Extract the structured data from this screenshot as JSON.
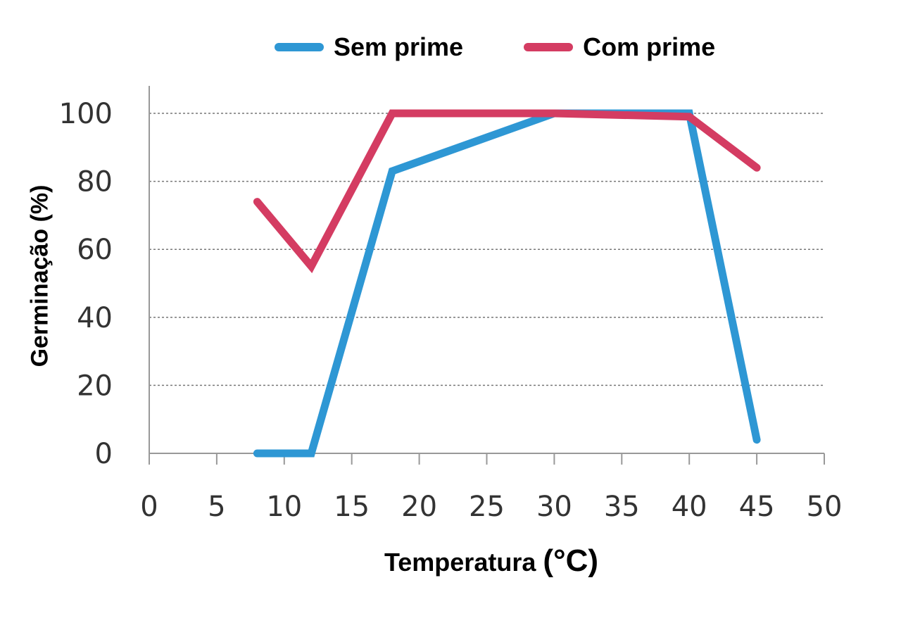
{
  "chart_data": {
    "type": "line",
    "xlabel": "Temperatura",
    "xlabel_unit": "(°C)",
    "ylabel": "Germinação (%)",
    "xlim": [
      0,
      50
    ],
    "ylim": [
      0,
      100
    ],
    "xticks": [
      0,
      5,
      10,
      15,
      20,
      25,
      30,
      35,
      40,
      45,
      50
    ],
    "yticks": [
      0,
      20,
      40,
      60,
      80,
      100
    ],
    "grid": "horizontal dotted",
    "legend_position": "top",
    "series": [
      {
        "name": "Sem prime",
        "color": "#2e97d4",
        "points": [
          [
            8,
            0
          ],
          [
            12,
            0
          ],
          [
            18,
            83
          ],
          [
            30,
            100
          ],
          [
            40,
            100
          ],
          [
            45,
            4
          ]
        ]
      },
      {
        "name": "Com prime",
        "color": "#d43c62",
        "points": [
          [
            8,
            74
          ],
          [
            12,
            55
          ],
          [
            18,
            100
          ],
          [
            30,
            100
          ],
          [
            40,
            99
          ],
          [
            45,
            84
          ]
        ]
      }
    ]
  }
}
